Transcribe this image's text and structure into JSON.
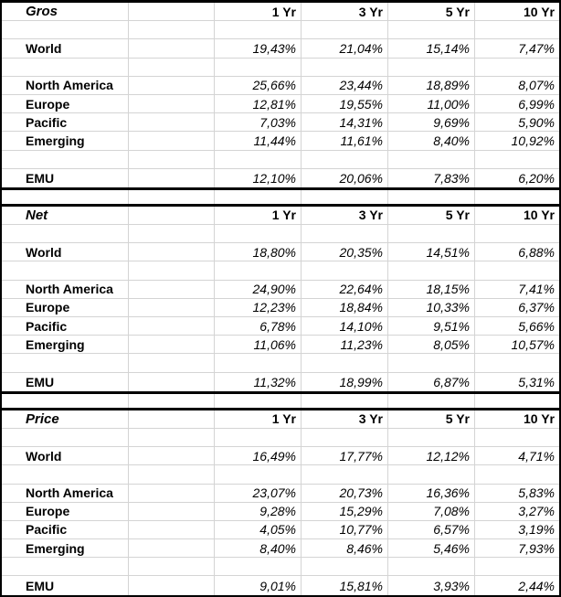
{
  "table": {
    "columns": [
      "1 Yr",
      "3 Yr",
      "5 Yr",
      "10 Yr"
    ],
    "gridline_color": "#d4d4d4",
    "border_color": "#000000",
    "sections": [
      {
        "title": "Gros",
        "rows": [
          {
            "label": "World",
            "values": [
              "19,43%",
              "21,04%",
              "15,14%",
              "7,47%"
            ]
          },
          {
            "label": "North America",
            "values": [
              "25,66%",
              "23,44%",
              "18,89%",
              "8,07%"
            ]
          },
          {
            "label": "Europe",
            "values": [
              "12,81%",
              "19,55%",
              "11,00%",
              "6,99%"
            ]
          },
          {
            "label": "Pacific",
            "values": [
              "7,03%",
              "14,31%",
              "9,69%",
              "5,90%"
            ]
          },
          {
            "label": "Emerging",
            "values": [
              "11,44%",
              "11,61%",
              "8,40%",
              "10,92%"
            ]
          },
          {
            "label": "EMU",
            "values": [
              "12,10%",
              "20,06%",
              "7,83%",
              "6,20%"
            ]
          }
        ]
      },
      {
        "title": "Net",
        "rows": [
          {
            "label": "World",
            "values": [
              "18,80%",
              "20,35%",
              "14,51%",
              "6,88%"
            ]
          },
          {
            "label": "North America",
            "values": [
              "24,90%",
              "22,64%",
              "18,15%",
              "7,41%"
            ]
          },
          {
            "label": "Europe",
            "values": [
              "12,23%",
              "18,84%",
              "10,33%",
              "6,37%"
            ]
          },
          {
            "label": "Pacific",
            "values": [
              "6,78%",
              "14,10%",
              "9,51%",
              "5,66%"
            ]
          },
          {
            "label": "Emerging",
            "values": [
              "11,06%",
              "11,23%",
              "8,05%",
              "10,57%"
            ]
          },
          {
            "label": "EMU",
            "values": [
              "11,32%",
              "18,99%",
              "6,87%",
              "5,31%"
            ]
          }
        ]
      },
      {
        "title": "Price",
        "rows": [
          {
            "label": "World",
            "values": [
              "16,49%",
              "17,77%",
              "12,12%",
              "4,71%"
            ]
          },
          {
            "label": "North America",
            "values": [
              "23,07%",
              "20,73%",
              "16,36%",
              "5,83%"
            ]
          },
          {
            "label": "Europe",
            "values": [
              "9,28%",
              "15,29%",
              "7,08%",
              "3,27%"
            ]
          },
          {
            "label": "Pacific",
            "values": [
              "4,05%",
              "10,77%",
              "6,57%",
              "3,19%"
            ]
          },
          {
            "label": "Emerging",
            "values": [
              "8,40%",
              "8,46%",
              "5,46%",
              "7,93%"
            ]
          },
          {
            "label": "EMU",
            "values": [
              "9,01%",
              "15,81%",
              "3,93%",
              "2,44%"
            ]
          }
        ]
      }
    ]
  }
}
